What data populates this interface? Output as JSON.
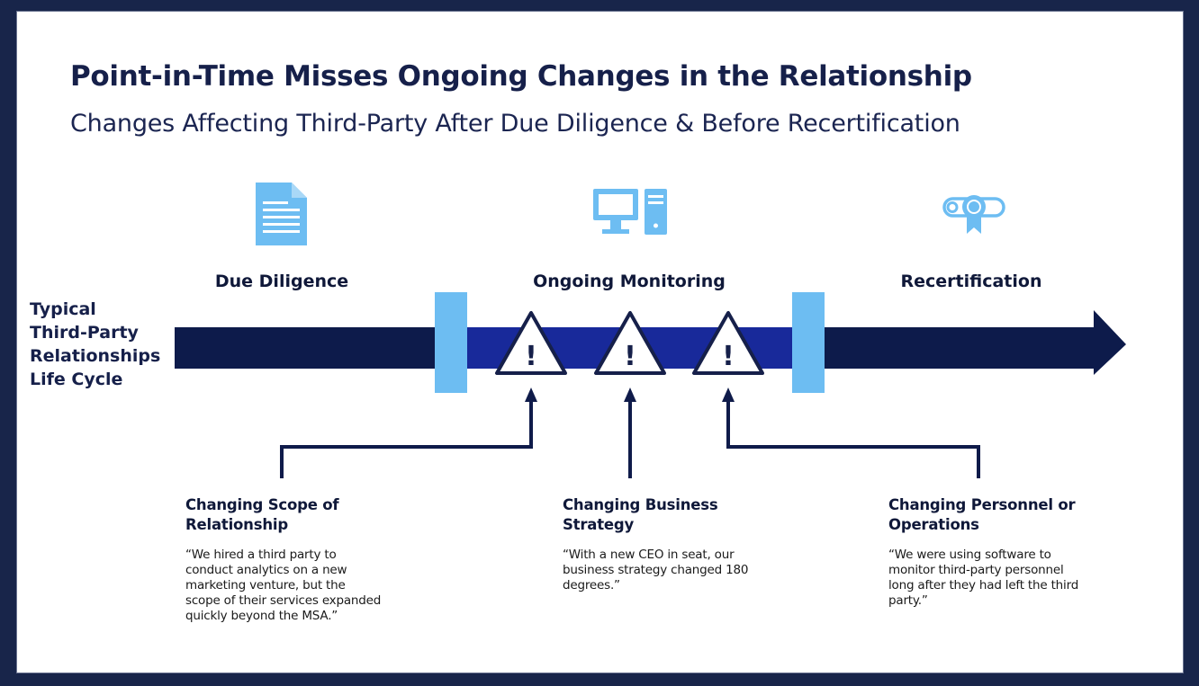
{
  "header": {
    "title": "Point-in-Time Misses Ongoing Changes in the Relationship",
    "subtitle": "Changes Affecting Third-Party After Due Diligence & Before Recertification"
  },
  "lifecycle": {
    "label_lines": [
      "Typical",
      "Third-Party",
      "Relationships",
      "Life Cycle"
    ],
    "stages": [
      {
        "label": "Due Diligence",
        "icon": "document-icon"
      },
      {
        "label": "Ongoing Monitoring",
        "icon": "computer-icon"
      },
      {
        "label": "Recertification",
        "icon": "certificate-icon"
      }
    ],
    "warning_mark": "!"
  },
  "changes": [
    {
      "title": "Changing Scope of Relationship",
      "quote": "“We hired a third party to conduct analytics on a new marketing venture, but the scope of their services expanded quickly beyond the MSA.”"
    },
    {
      "title": "Changing Business Strategy",
      "quote": "“With a new CEO in seat, our business strategy changed 180 degrees.”"
    },
    {
      "title": "Changing Personnel or Operations",
      "quote": "“We were using software to monitor third-party personnel long after they had left the third party.”"
    }
  ],
  "colors": {
    "frame": "#18254a",
    "navy_arrow": "#0d1b4b",
    "monitoring_band": "#18299a",
    "light_blue": "#6dbdf2",
    "connector": "#0f1b4a"
  }
}
